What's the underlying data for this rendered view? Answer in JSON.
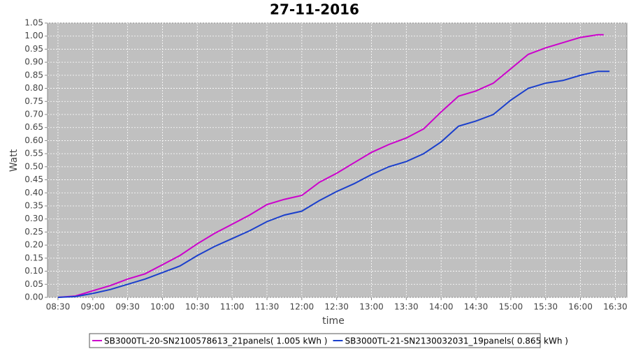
{
  "chart_data": {
    "type": "line",
    "title": "27-11-2016",
    "x_label": "time",
    "y_label": "Watt",
    "x": [
      "08:30",
      "08:45",
      "09:00",
      "09:15",
      "09:30",
      "09:45",
      "10:00",
      "10:15",
      "10:30",
      "10:45",
      "11:00",
      "11:15",
      "11:30",
      "11:45",
      "12:00",
      "12:15",
      "12:30",
      "12:45",
      "13:00",
      "13:15",
      "13:30",
      "13:45",
      "14:00",
      "14:15",
      "14:30",
      "14:45",
      "15:00",
      "15:15",
      "15:30",
      "15:45",
      "16:00",
      "16:15",
      "16:20",
      "16:25"
    ],
    "series": [
      {
        "name": "SB3000TL-20-SN2100578613_21panels( 1.005 kWh )",
        "color": "#cc00cc",
        "values": [
          0,
          0.005,
          0.025,
          0.045,
          0.07,
          0.09,
          0.125,
          0.16,
          0.205,
          0.245,
          0.28,
          0.315,
          0.355,
          0.375,
          0.39,
          0.44,
          0.475,
          0.515,
          0.555,
          0.585,
          0.61,
          0.645,
          0.71,
          0.77,
          0.79,
          0.82,
          0.875,
          0.93,
          0.955,
          0.975,
          0.995,
          1.005,
          1.005,
          null
        ]
      },
      {
        "name": "SB3000TL-21-SN2130032031_19panels( 0.865 kWh )",
        "color": "#1a3fcc",
        "values": [
          0,
          0.003,
          0.015,
          0.03,
          0.05,
          0.07,
          0.095,
          0.12,
          0.16,
          0.195,
          0.225,
          0.255,
          0.29,
          0.315,
          0.33,
          0.37,
          0.405,
          0.435,
          0.47,
          0.5,
          0.52,
          0.55,
          0.595,
          0.655,
          0.675,
          0.7,
          0.755,
          0.8,
          0.82,
          0.83,
          0.85,
          0.865,
          0.865,
          0.865
        ]
      }
    ],
    "xlim": [
      "08:21",
      "16:40"
    ],
    "xticks": [
      "08:30",
      "09:00",
      "09:30",
      "10:00",
      "10:30",
      "11:00",
      "11:30",
      "12:00",
      "12:30",
      "13:00",
      "13:30",
      "14:00",
      "14:30",
      "15:00",
      "15:30",
      "16:00",
      "16:30"
    ],
    "ylim": [
      0,
      1.05
    ],
    "yticks": [
      {
        "value": 0,
        "label": "0.00"
      },
      {
        "value": 0.05,
        "label": "0.05"
      },
      {
        "value": 0.1,
        "label": "0.10"
      },
      {
        "value": 0.15,
        "label": "0.15"
      },
      {
        "value": 0.2,
        "label": "0.20"
      },
      {
        "value": 0.25,
        "label": "0.25"
      },
      {
        "value": 0.3,
        "label": "0.30"
      },
      {
        "value": 0.35,
        "label": "0.35"
      },
      {
        "value": 0.4,
        "label": "0.40"
      },
      {
        "value": 0.45,
        "label": "0.45"
      },
      {
        "value": 0.5,
        "label": "0.50"
      },
      {
        "value": 0.55,
        "label": "0.55"
      },
      {
        "value": 0.6,
        "label": "0.60"
      },
      {
        "value": 0.65,
        "label": "0.65"
      },
      {
        "value": 0.7,
        "label": "0.70"
      },
      {
        "value": 0.75,
        "label": "0.75"
      },
      {
        "value": 0.8,
        "label": "0.80"
      },
      {
        "value": 0.85,
        "label": "0.85"
      },
      {
        "value": 0.9,
        "label": "0.90"
      },
      {
        "value": 0.95,
        "label": "0.95"
      },
      {
        "value": 1,
        "label": "1.00"
      },
      {
        "value": 1.05,
        "label": "1.05"
      }
    ],
    "grid": true,
    "legend": "bottom"
  }
}
